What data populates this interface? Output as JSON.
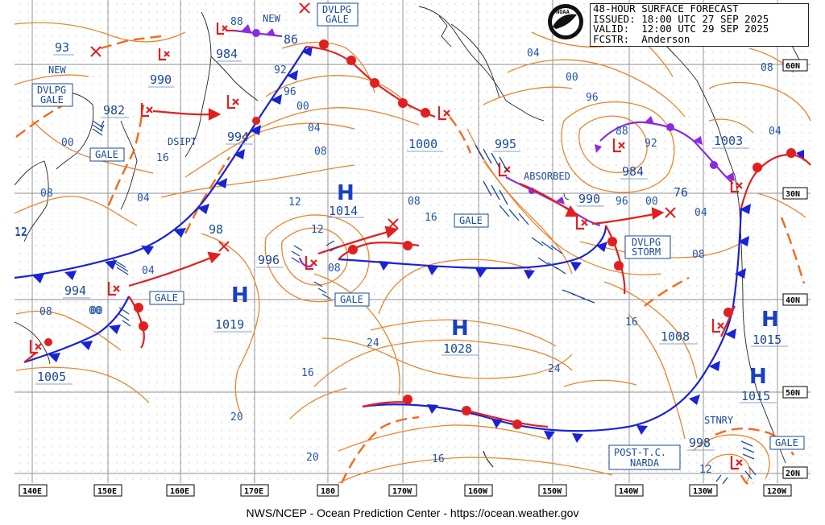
{
  "header": {
    "lines": [
      "48-HOUR SURFACE FORECAST",
      "ISSUED: 18:00 UTC 27 SEP 2025",
      "VALID:  12:00 UTC 29 SEP 2025",
      "FCSTR:  Anderson"
    ],
    "logo_text": "NOAA"
  },
  "footer": "NWS/NCEP - Ocean Prediction Center - https://ocean.weather.gov",
  "lon_ticks": [
    "140E",
    "150E",
    "160E",
    "170E",
    "180",
    "170W",
    "160W",
    "150W",
    "140W",
    "130W",
    "120W"
  ],
  "lat_ticks": [
    "60N",
    "50N",
    "40N",
    "30N",
    "20N"
  ],
  "highs": [
    {
      "symbol": "H",
      "pressure": "1014"
    },
    {
      "symbol": "H",
      "pressure": "1019"
    },
    {
      "symbol": "H",
      "pressure": "1028"
    },
    {
      "symbol": "H",
      "pressure": "1015"
    },
    {
      "symbol": "H",
      "pressure": "1015"
    }
  ],
  "lows": [
    "93",
    "990",
    "982",
    "984",
    "86",
    "994",
    "1000",
    "995",
    "984",
    "1003",
    "990",
    "76",
    "996",
    "98",
    "994",
    "1005",
    "1008",
    "998"
  ],
  "labels": {
    "new_1": "NEW",
    "new_2": "NEW",
    "dsipt": "DSIPT",
    "absorbed": "ABSORBED",
    "stnry": "STNRY"
  },
  "boxes": {
    "dvlpg_gale_top": [
      "DVLPG",
      "GALE"
    ],
    "dvlpg_gale_left": [
      "DVLPG",
      "GALE"
    ],
    "gale_1": "GALE",
    "gale_2": "GALE",
    "gale_3": "GALE",
    "gale_4": "GALE",
    "gale_5": "GALE",
    "dvlpg_storm": [
      "DVLPG",
      "STORM"
    ],
    "post_tc": [
      "POST-T.C.",
      "NARDA"
    ]
  },
  "isobar_labels": [
    "00",
    "04",
    "08",
    "12",
    "16",
    "20",
    "24",
    "88",
    "92",
    "96",
    "00",
    "04",
    "08",
    "12",
    "16",
    "20",
    "24",
    "16",
    "08",
    "04",
    "00",
    "96",
    "92",
    "88",
    "04",
    "00",
    "08",
    "12",
    "08",
    "04",
    "00",
    "96",
    "16",
    "08",
    "12",
    "04",
    "00",
    "08",
    "16",
    "12"
  ],
  "colors": {
    "isobar": "#e8862e",
    "cold_front": "#1a22d6",
    "warm_front": "#e21f1f",
    "occluded": "#8a2be2",
    "trough": "#f26a1b",
    "grid": "#808080",
    "label_text": "#1a4a9a"
  }
}
